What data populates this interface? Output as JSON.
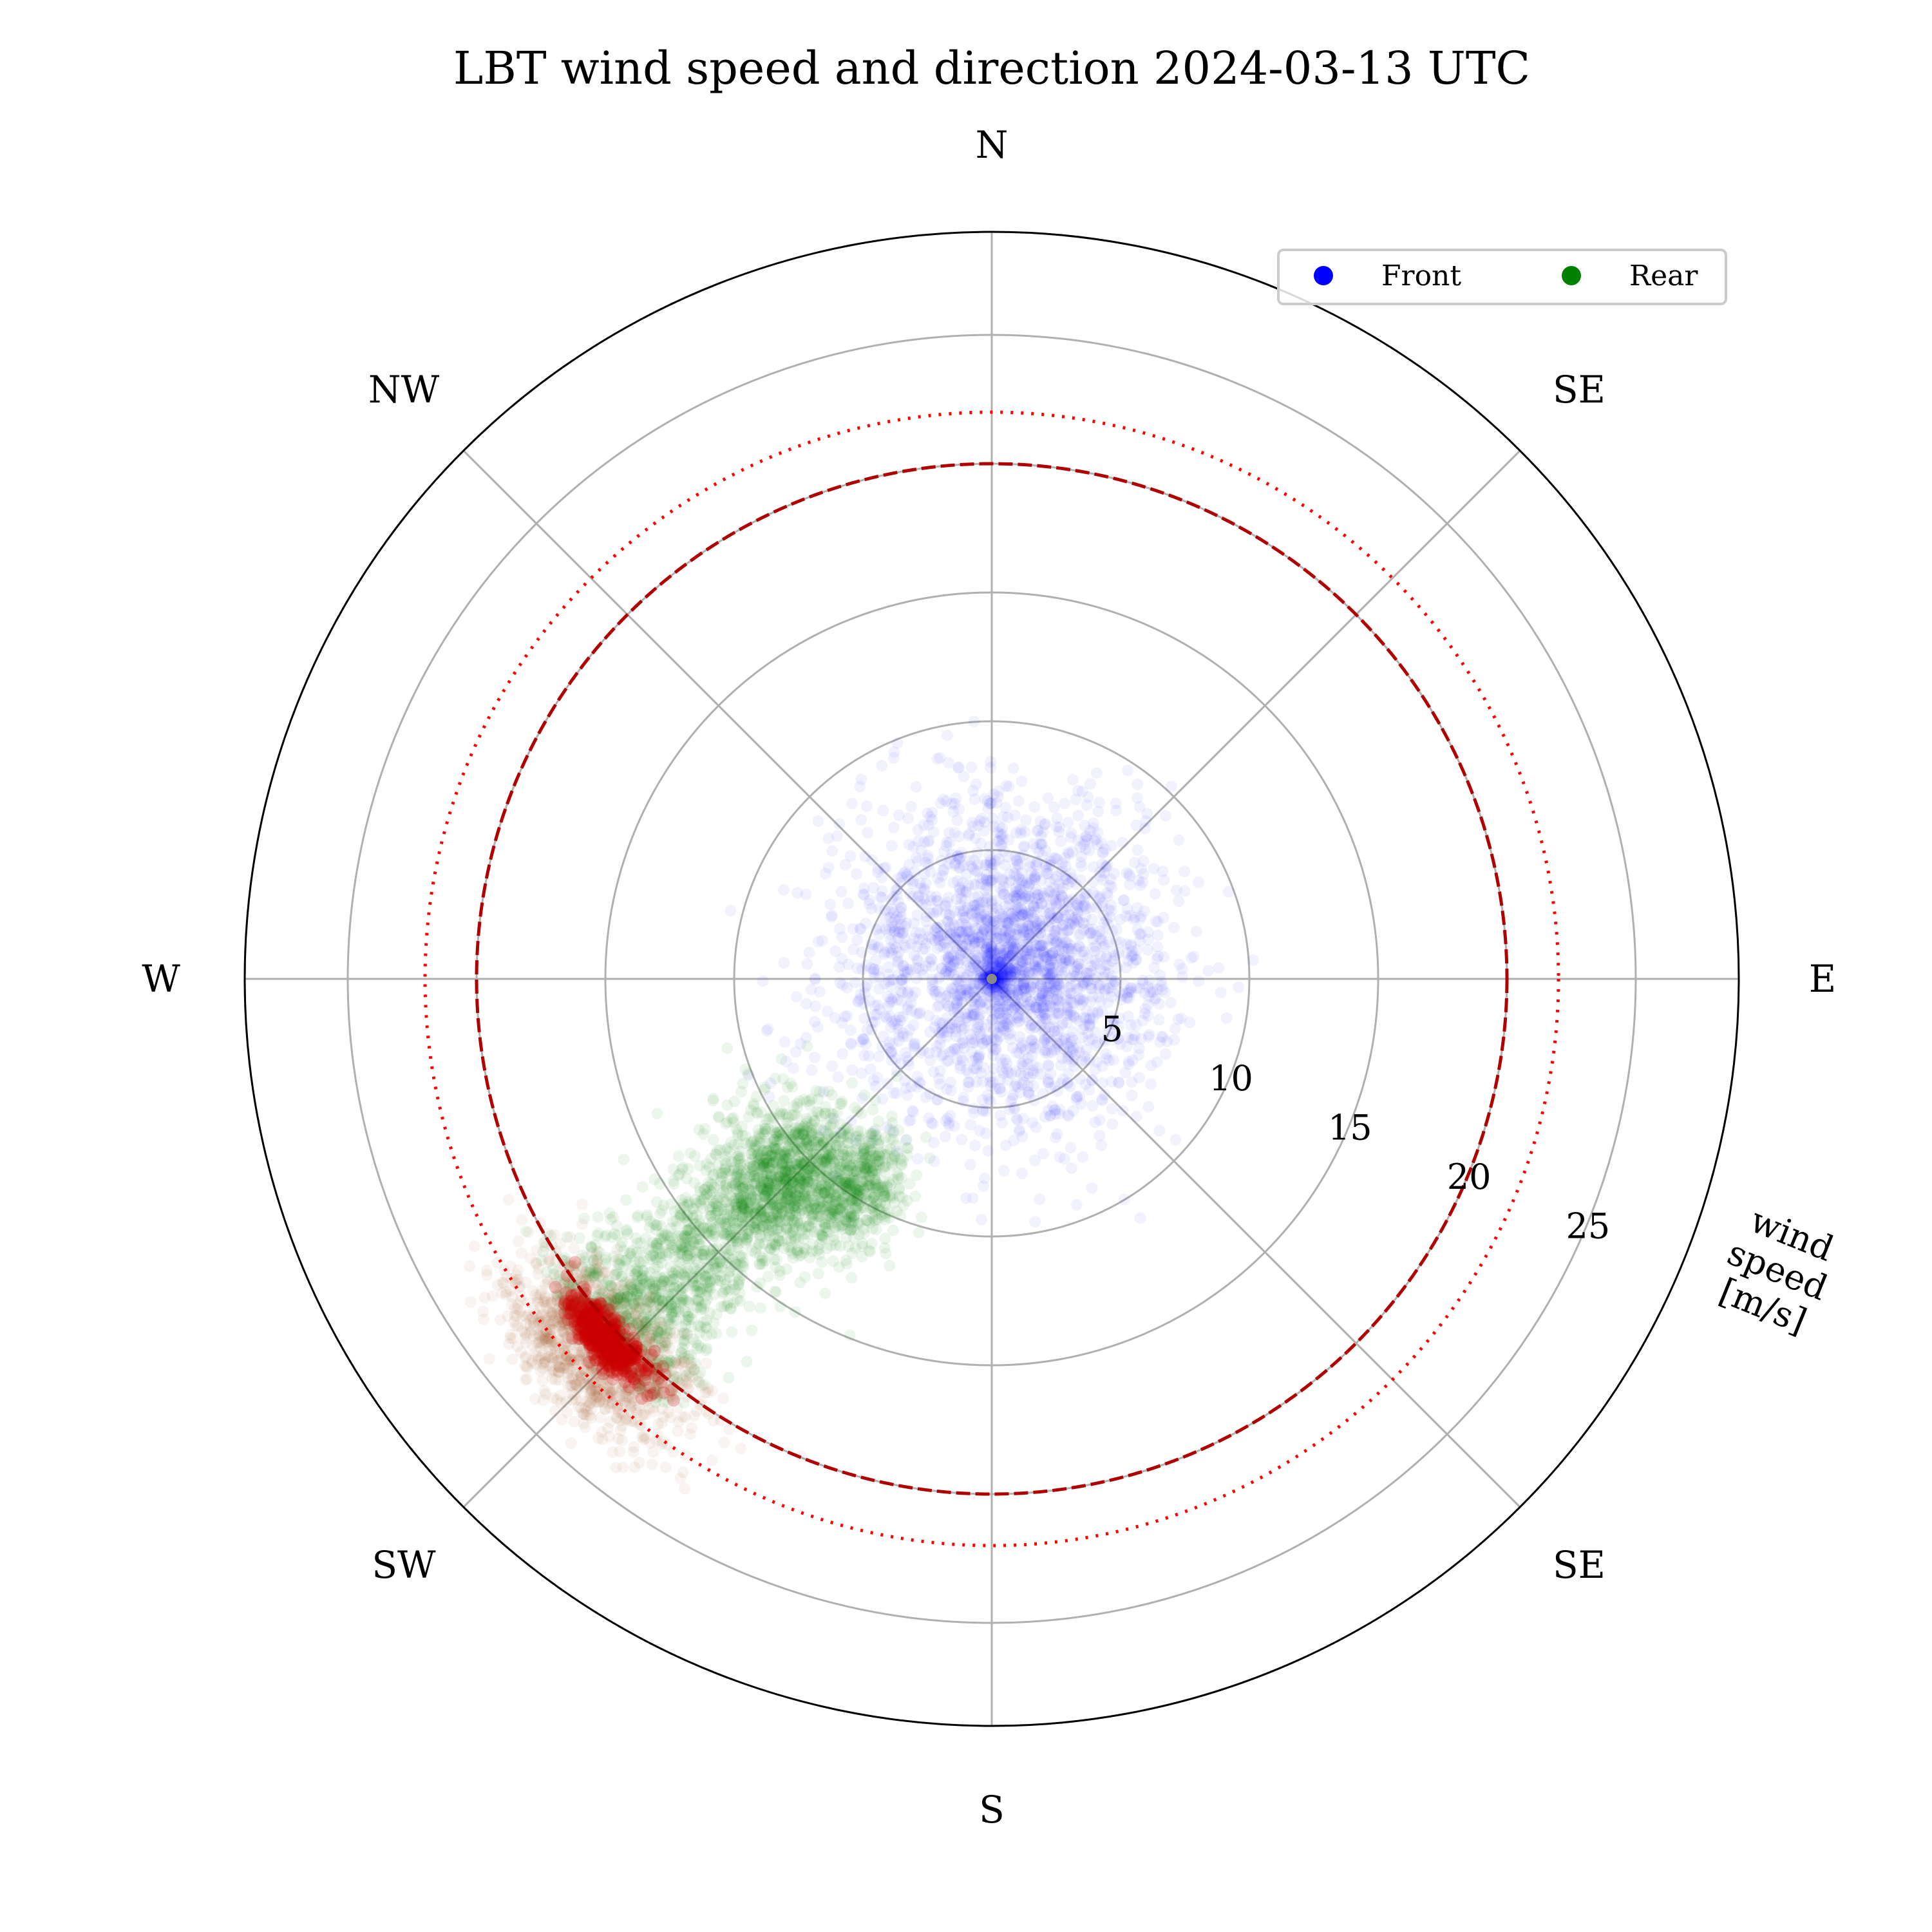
{
  "chart_data": {
    "type": "scatter",
    "projection": "polar",
    "title": "LBT wind speed and direction 2024-03-13 UTC",
    "direction_labels": {
      "N": "N",
      "NE": "SE",
      "E": "E",
      "SE": "SE",
      "S": "S",
      "SW": "SW",
      "W": "W",
      "NW": "NW"
    },
    "radial_ticks": [
      "5",
      "10",
      "15",
      "20",
      "25"
    ],
    "radial_tick_values": [
      5,
      10,
      15,
      20,
      25
    ],
    "rlim": [
      0,
      29
    ],
    "radial_axis_label": "wind speed [m/s]",
    "radial_axis_label_lines": [
      "wind",
      "speed",
      "[m/s]"
    ],
    "grid": true,
    "reference_circles": [
      {
        "speed": 20,
        "style": "dashed",
        "color": "#b00000"
      },
      {
        "speed": 22,
        "style": "dotted",
        "color": "#ff0000"
      }
    ],
    "legend": {
      "position": "top-right",
      "entries": [
        "Front",
        "Rear"
      ]
    },
    "series": [
      {
        "name": "Front",
        "color": "#0000ff",
        "marker": "point",
        "alpha": "low",
        "direction_deg_mean": 45,
        "direction_spread": "all directions",
        "speed_mean": 3.5,
        "speed_sd": 3.0,
        "speed_max": 12
      },
      {
        "name": "Rear",
        "color": "#008000",
        "marker": "point",
        "alpha": "low",
        "direction_deg_mean": 225,
        "direction_deg_sd": 12,
        "speed_range": [
          9,
          21
        ],
        "speed_peak": 11
      },
      {
        "color": "#a04010",
        "marker": "point",
        "alpha": "low",
        "direction_deg_mean": 227,
        "direction_deg_sd": 6,
        "speed_range": [
          19,
          23
        ]
      },
      {
        "color": "#cc0000",
        "marker": "point",
        "alpha": "high",
        "direction_deg_mean": 227,
        "direction_deg_sd": 3,
        "speed_range": [
          20,
          21
        ]
      }
    ]
  }
}
